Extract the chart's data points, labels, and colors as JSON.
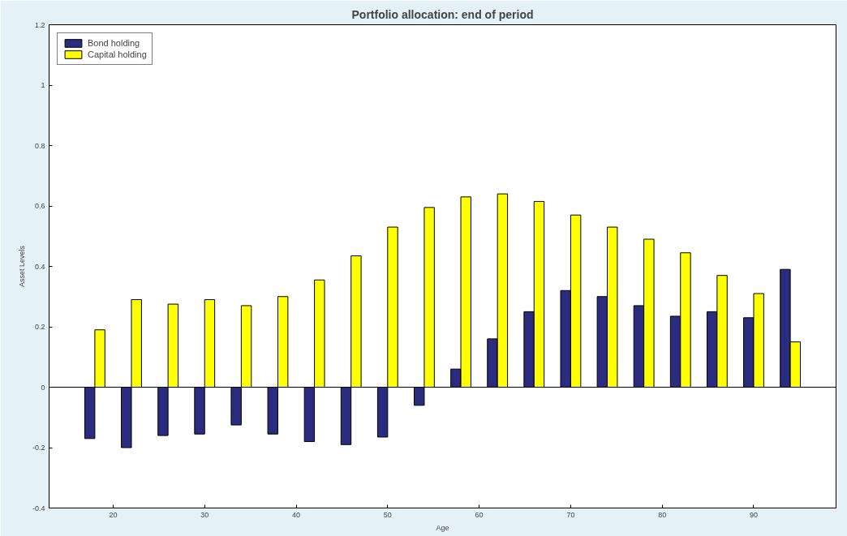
{
  "chart_data": {
    "type": "bar",
    "title": "Portfolio allocation: end of period",
    "xlabel": "Age",
    "ylabel": "Asset Levels",
    "x": [
      18,
      22,
      26,
      30,
      34,
      38,
      42,
      46,
      50,
      54,
      58,
      62,
      66,
      70,
      74,
      78,
      82,
      86,
      90,
      94
    ],
    "series": [
      {
        "name": "Bond holding",
        "color": "#2b2b7f",
        "values": [
          -0.17,
          -0.2,
          -0.16,
          -0.155,
          -0.125,
          -0.155,
          -0.18,
          -0.19,
          -0.165,
          -0.06,
          0.06,
          0.16,
          0.25,
          0.32,
          0.3,
          0.27,
          0.235,
          0.25,
          0.23,
          0.39
        ]
      },
      {
        "name": "Capital holding",
        "color": "#ffff00",
        "values": [
          0.19,
          0.29,
          0.275,
          0.29,
          0.27,
          0.3,
          0.355,
          0.435,
          0.53,
          0.595,
          0.63,
          0.64,
          0.615,
          0.57,
          0.53,
          0.49,
          0.445,
          0.37,
          0.31,
          0.15
        ]
      }
    ],
    "xlim": [
      13,
      99
    ],
    "xticks": [
      20,
      30,
      40,
      50,
      60,
      70,
      80,
      90
    ],
    "ylim": [
      -0.4,
      1.2
    ],
    "yticks": [
      -0.4,
      -0.2,
      0,
      0.2,
      0.4,
      0.6,
      0.8,
      1,
      1.2
    ],
    "ref_lines": [
      {
        "axis": "y",
        "value": 0,
        "color": "#000000"
      }
    ],
    "legend": "top left",
    "grid": false
  }
}
